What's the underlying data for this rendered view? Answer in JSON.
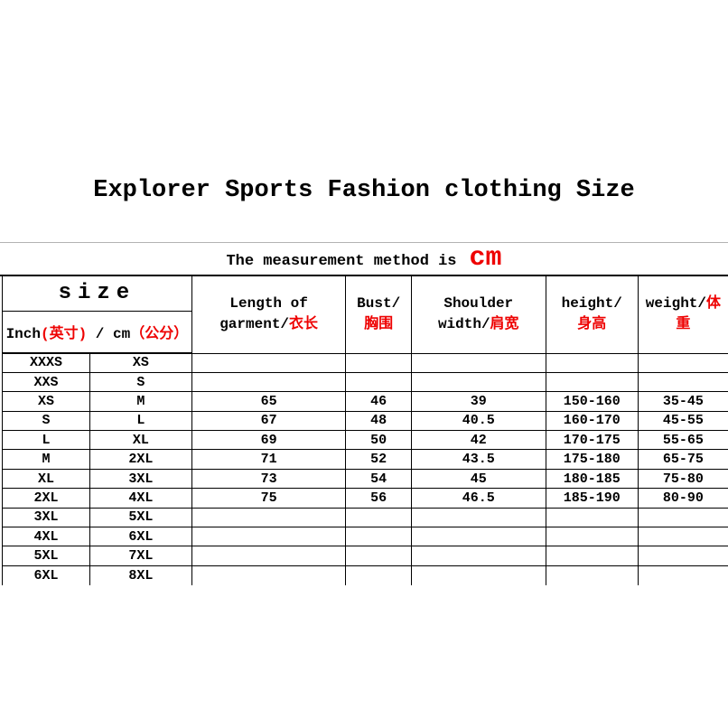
{
  "page": {
    "title": "Explorer Sports Fashion clothing Size"
  },
  "measurement_note": {
    "prefix": "The measurement method is",
    "unit": "cm"
  },
  "colors": {
    "accent_red": "#ee0202",
    "text_black": "#000000",
    "grid_line": "#000000",
    "top_rule": "#b3b3b3"
  },
  "table": {
    "size_header": "size",
    "size_subheader": {
      "inch_label": "Inch",
      "inch_zh": "(英寸)",
      "separator": " / ",
      "cm_label": "cm",
      "cm_zh": "（公分）"
    },
    "columns": {
      "length": {
        "l1b": "Length of",
        "l1r": "",
        "l2b": "garment/",
        "l2r": "衣长"
      },
      "bust": {
        "l1b": "Bust/",
        "l1r": "",
        "l2b": "",
        "l2r": "胸围"
      },
      "shoulder": {
        "l1b": "Shoulder",
        "l1r": "",
        "l2b": "width/",
        "l2r": "肩宽"
      },
      "height": {
        "l1b": "height/",
        "l1r": "",
        "l2b": "",
        "l2r": "身高"
      },
      "weight": {
        "l1b": "weight/",
        "l1r": "体",
        "l2b": "",
        "l2r": "重"
      }
    },
    "rows": [
      [
        "XXXS",
        "XS",
        "",
        "",
        "",
        "",
        ""
      ],
      [
        "XXS",
        "S",
        "",
        "",
        "",
        "",
        ""
      ],
      [
        "XS",
        "M",
        "65",
        "46",
        "39",
        "150-160",
        "35-45"
      ],
      [
        "S",
        "L",
        "67",
        "48",
        "40.5",
        "160-170",
        "45-55"
      ],
      [
        "L",
        "XL",
        "69",
        "50",
        "42",
        "170-175",
        "55-65"
      ],
      [
        "M",
        "2XL",
        "71",
        "52",
        "43.5",
        "175-180",
        "65-75"
      ],
      [
        "XL",
        "3XL",
        "73",
        "54",
        "45",
        "180-185",
        "75-80"
      ],
      [
        "2XL",
        "4XL",
        "75",
        "56",
        "46.5",
        "185-190",
        "80-90"
      ],
      [
        "3XL",
        "5XL",
        "",
        "",
        "",
        "",
        ""
      ],
      [
        "4XL",
        "6XL",
        "",
        "",
        "",
        "",
        ""
      ],
      [
        "5XL",
        "7XL",
        "",
        "",
        "",
        "",
        ""
      ],
      [
        "6XL",
        "8XL",
        "",
        "",
        "",
        "",
        ""
      ]
    ]
  }
}
